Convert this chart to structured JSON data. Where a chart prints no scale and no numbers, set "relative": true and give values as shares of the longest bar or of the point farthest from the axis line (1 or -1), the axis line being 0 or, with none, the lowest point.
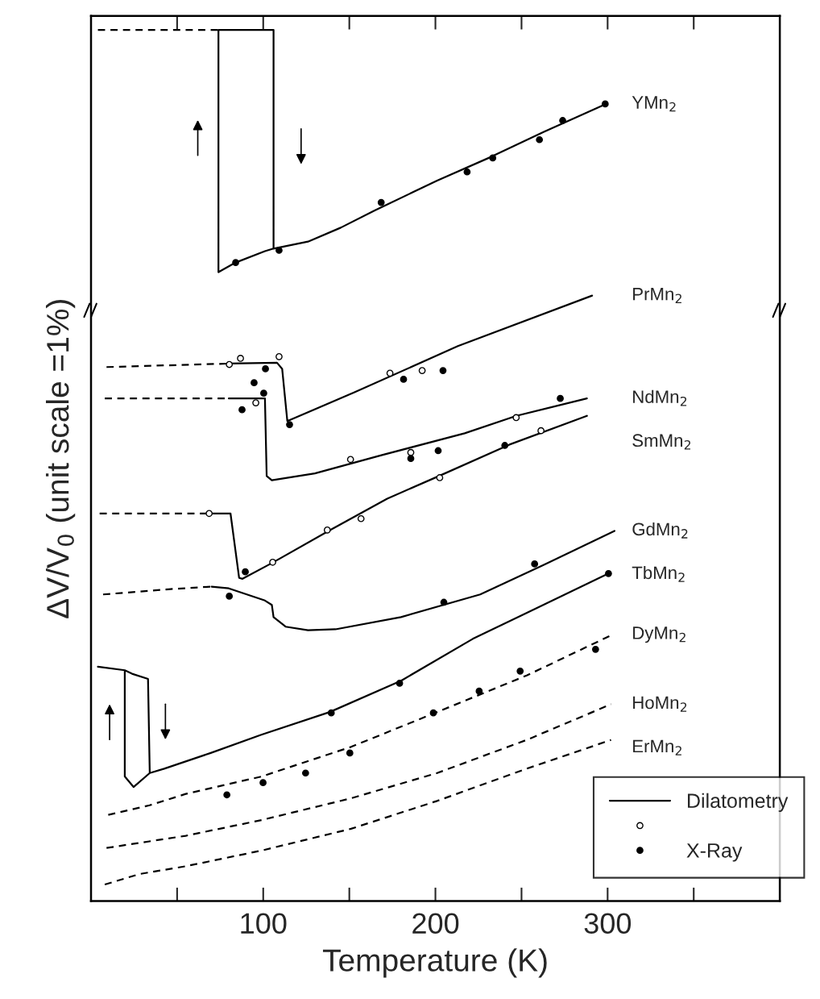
{
  "chart_data": {
    "type": "line",
    "relative": true,
    "xlabel": "Temperature (K)",
    "ylabel": "ΔV/V$_{0}$ (unit scale =1%)",
    "xlim": [
      0,
      400
    ],
    "xticks": [
      100,
      200,
      300
    ],
    "grid": false,
    "legend": "bottom right",
    "annotations": [
      "Dilatometry"
    ],
    "series": [
      {
        "color": "#000000",
        "line_style": "dashed",
        "x": [
          4,
          74
        ],
        "values": [
          1.0,
          1.0
        ]
      },
      {
        "name": "YMn$_{2}$",
        "color": "#000000",
        "line_style": "solid",
        "x": [
          106,
          101,
          84,
          74,
          74,
          106,
          106,
          126,
          145,
          165,
          201,
          232,
          263,
          299
        ],
        "values": [
          0.749,
          0.746,
          0.733,
          0.722,
          1.0,
          1.0,
          0.749,
          0.757,
          0.773,
          0.793,
          0.827,
          0.854,
          0.883,
          0.915
        ]
      },
      {
        "color": "#000000",
        "line_style": "dashed",
        "x": [
          9,
          80
        ],
        "values": [
          0.613,
          0.617
        ]
      },
      {
        "name": "PrMn$_{2}$",
        "color": "#000000",
        "line_style": "solid",
        "x": [
          80,
          108,
          111,
          114,
          153,
          213,
          291
        ],
        "values": [
          0.617,
          0.618,
          0.611,
          0.551,
          0.584,
          0.637,
          0.695
        ]
      },
      {
        "color": "#000000",
        "line_style": "dashed",
        "x": [
          8,
          80
        ],
        "values": [
          0.577,
          0.577
        ]
      },
      {
        "name": "NdMn$_{2}$",
        "color": "#000000",
        "line_style": "solid",
        "x": [
          80,
          101,
          102,
          105,
          130,
          169,
          217,
          247,
          288
        ],
        "values": [
          0.577,
          0.577,
          0.488,
          0.483,
          0.491,
          0.512,
          0.537,
          0.557,
          0.577
        ]
      },
      {
        "color": "#000000",
        "line_style": "dashed",
        "x": [
          5,
          69
        ],
        "values": [
          0.445,
          0.445
        ]
      },
      {
        "name": "SmMn$_{2}$",
        "color": "#000000",
        "line_style": "solid",
        "x": [
          69,
          81,
          86,
          88,
          105,
          139,
          172,
          201,
          243,
          288
        ],
        "values": [
          0.445,
          0.445,
          0.371,
          0.37,
          0.388,
          0.426,
          0.462,
          0.487,
          0.524,
          0.557
        ]
      },
      {
        "color": "#000000",
        "line_style": "dashed",
        "x": [
          7,
          45,
          70
        ],
        "values": [
          0.352,
          0.358,
          0.361
        ]
      },
      {
        "name": "GdMn$_{2}$",
        "color": "#000000",
        "line_style": "solid",
        "x": [
          70,
          80,
          101,
          105,
          106,
          113,
          126,
          142,
          180,
          226,
          263,
          304
        ],
        "values": [
          0.361,
          0.359,
          0.345,
          0.34,
          0.326,
          0.315,
          0.311,
          0.312,
          0.326,
          0.352,
          0.386,
          0.425
        ]
      },
      {
        "name": "TbMn$_{2}$",
        "color": "#000000",
        "line_style": "solid",
        "x": [
          4,
          19.6,
          23.8,
          33.1,
          34.1,
          24.7,
          19.6,
          19.6,
          19.6,
          24.7,
          34.1,
          42.5,
          69.5,
          98.9,
          138.6,
          180.1,
          221.7,
          300.5
        ],
        "values": [
          0.269,
          0.265,
          0.261,
          0.255,
          0.147,
          0.131,
          0.143,
          0.265,
          0.143,
          0.131,
          0.147,
          0.152,
          0.17,
          0.191,
          0.217,
          0.253,
          0.301,
          0.376
        ]
      },
      {
        "name": "DyMn$_{2}$",
        "color": "#000000",
        "line_style": "dashed",
        "x": [
          10,
          34,
          55,
          99,
          151,
          201,
          253,
          303
        ],
        "values": [
          0.099,
          0.11,
          0.123,
          0.143,
          0.177,
          0.217,
          0.259,
          0.306
        ]
      },
      {
        "name": "HoMn$_{2}$",
        "color": "#000000",
        "line_style": "dashed",
        "x": [
          9,
          55,
          99,
          151,
          201,
          253,
          302
        ],
        "values": [
          0.061,
          0.075,
          0.093,
          0.118,
          0.147,
          0.185,
          0.226
        ]
      },
      {
        "name": "ErMn$_{2}$",
        "color": "#000000",
        "line_style": "dashed",
        "x": [
          8,
          28,
          55,
          99,
          151,
          201,
          253,
          302
        ],
        "values": [
          0.019,
          0.031,
          0.04,
          0.058,
          0.083,
          0.115,
          0.152,
          0.185
        ]
      },
      {
        "type": "scatter",
        "name": "X-Ray",
        "marker": "circle",
        "color": "#000000",
        "x": [
          168.5,
          218.4,
          233.3,
          260.4,
          273.9,
          298.6,
          109.2,
          84,
          94.7,
          101.3,
          87.7,
          100.3,
          115.3,
          181.5,
          204.4,
          272.5,
          201.6,
          185.7,
          240.3,
          89.6,
          80.3,
          204.9,
          257.6,
          300.5,
          78.9,
          99.9,
          124.6,
          150.3,
          225.4,
          249.2,
          293,
          198.8,
          179.2,
          139.5
        ],
        "values": [
          0.802,
          0.837,
          0.853,
          0.874,
          0.896,
          0.915,
          0.747,
          0.733,
          0.595,
          0.611,
          0.564,
          0.583,
          0.547,
          0.599,
          0.609,
          0.577,
          0.517,
          0.508,
          0.523,
          0.378,
          0.35,
          0.343,
          0.387,
          0.376,
          0.122,
          0.136,
          0.147,
          0.17,
          0.241,
          0.264,
          0.289,
          0.216,
          0.25,
          0.216
        ]
      },
      {
        "type": "scatter",
        "marker": "circle",
        "color": "#ffffff",
        "x": [
          80.3,
          109.2,
          86.8,
          95.7,
          173.6,
          192.3,
          150.7,
          185.7,
          246.9,
          156.8,
          202.5,
          261.3,
          68.6,
          137.2,
          105.5
        ],
        "values": [
          0.616,
          0.625,
          0.623,
          0.572,
          0.606,
          0.609,
          0.507,
          0.515,
          0.555,
          0.439,
          0.486,
          0.54,
          0.445,
          0.426,
          0.389
        ]
      }
    ]
  }
}
